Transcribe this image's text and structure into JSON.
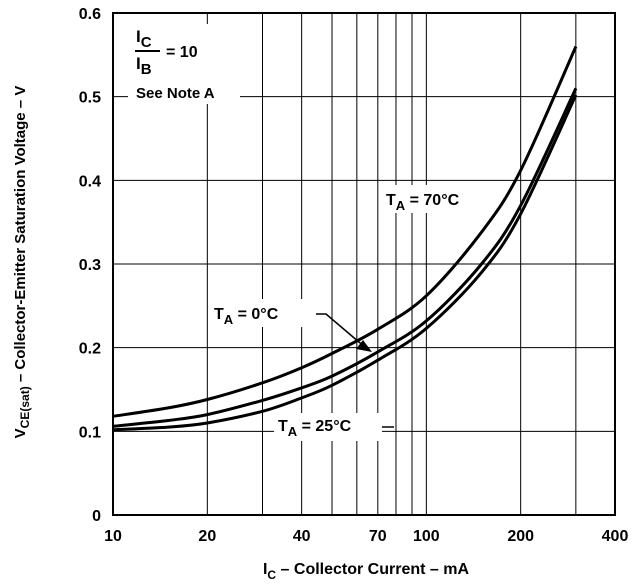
{
  "chart_data": {
    "type": "line",
    "x_scale": "log",
    "xlim": [
      10,
      400
    ],
    "ylim": [
      0,
      0.6
    ],
    "grid": true,
    "xlabel": {
      "main": "I",
      "sub": "C",
      "rest": " – Collector Current – mA"
    },
    "ylabel": {
      "main": "V",
      "sub": "CE(sat)",
      "rest": " – Collector-Emitter Saturation Voltage – V"
    },
    "x_ticks": [
      10,
      20,
      40,
      70,
      100,
      200,
      400
    ],
    "x_tick_labels": [
      "10",
      "20",
      "40",
      "70",
      "100",
      "200",
      "400"
    ],
    "x_gridlines": [
      20,
      30,
      40,
      50,
      60,
      70,
      80,
      90,
      100,
      200,
      300
    ],
    "y_ticks": [
      0,
      0.1,
      0.2,
      0.3,
      0.4,
      0.5,
      0.6
    ],
    "y_tick_labels": [
      "0",
      "0.1",
      "0.2",
      "0.3",
      "0.4",
      "0.5",
      "0.6"
    ],
    "annotation": {
      "ratio_top": {
        "main": "I",
        "sub": "C"
      },
      "ratio_bottom": {
        "main": "I",
        "sub": "B"
      },
      "ratio_value": "=  10",
      "note": "See Note A"
    },
    "series": [
      {
        "name": "T_A = 70°C",
        "label": {
          "main": "T",
          "sub": "A",
          "rest": " = 70°C"
        },
        "x": [
          10,
          15,
          20,
          30,
          40,
          50,
          70,
          100,
          150,
          200,
          300
        ],
        "y": [
          0.118,
          0.128,
          0.138,
          0.158,
          0.176,
          0.193,
          0.222,
          0.262,
          0.338,
          0.412,
          0.56
        ]
      },
      {
        "name": "T_A = 0°C",
        "label": {
          "main": "T",
          "sub": "A",
          "rest": " = 0°C"
        },
        "x": [
          10,
          15,
          20,
          30,
          40,
          50,
          70,
          100,
          150,
          200,
          300
        ],
        "y": [
          0.106,
          0.113,
          0.12,
          0.137,
          0.152,
          0.166,
          0.195,
          0.232,
          0.3,
          0.37,
          0.51
        ]
      },
      {
        "name": "T_A = 25°C",
        "label": {
          "main": "T",
          "sub": "A",
          "rest": " = 25°C"
        },
        "x": [
          10,
          15,
          20,
          30,
          40,
          50,
          70,
          100,
          150,
          200,
          300
        ],
        "y": [
          0.102,
          0.105,
          0.11,
          0.124,
          0.14,
          0.155,
          0.185,
          0.223,
          0.29,
          0.36,
          0.502
        ]
      }
    ]
  }
}
